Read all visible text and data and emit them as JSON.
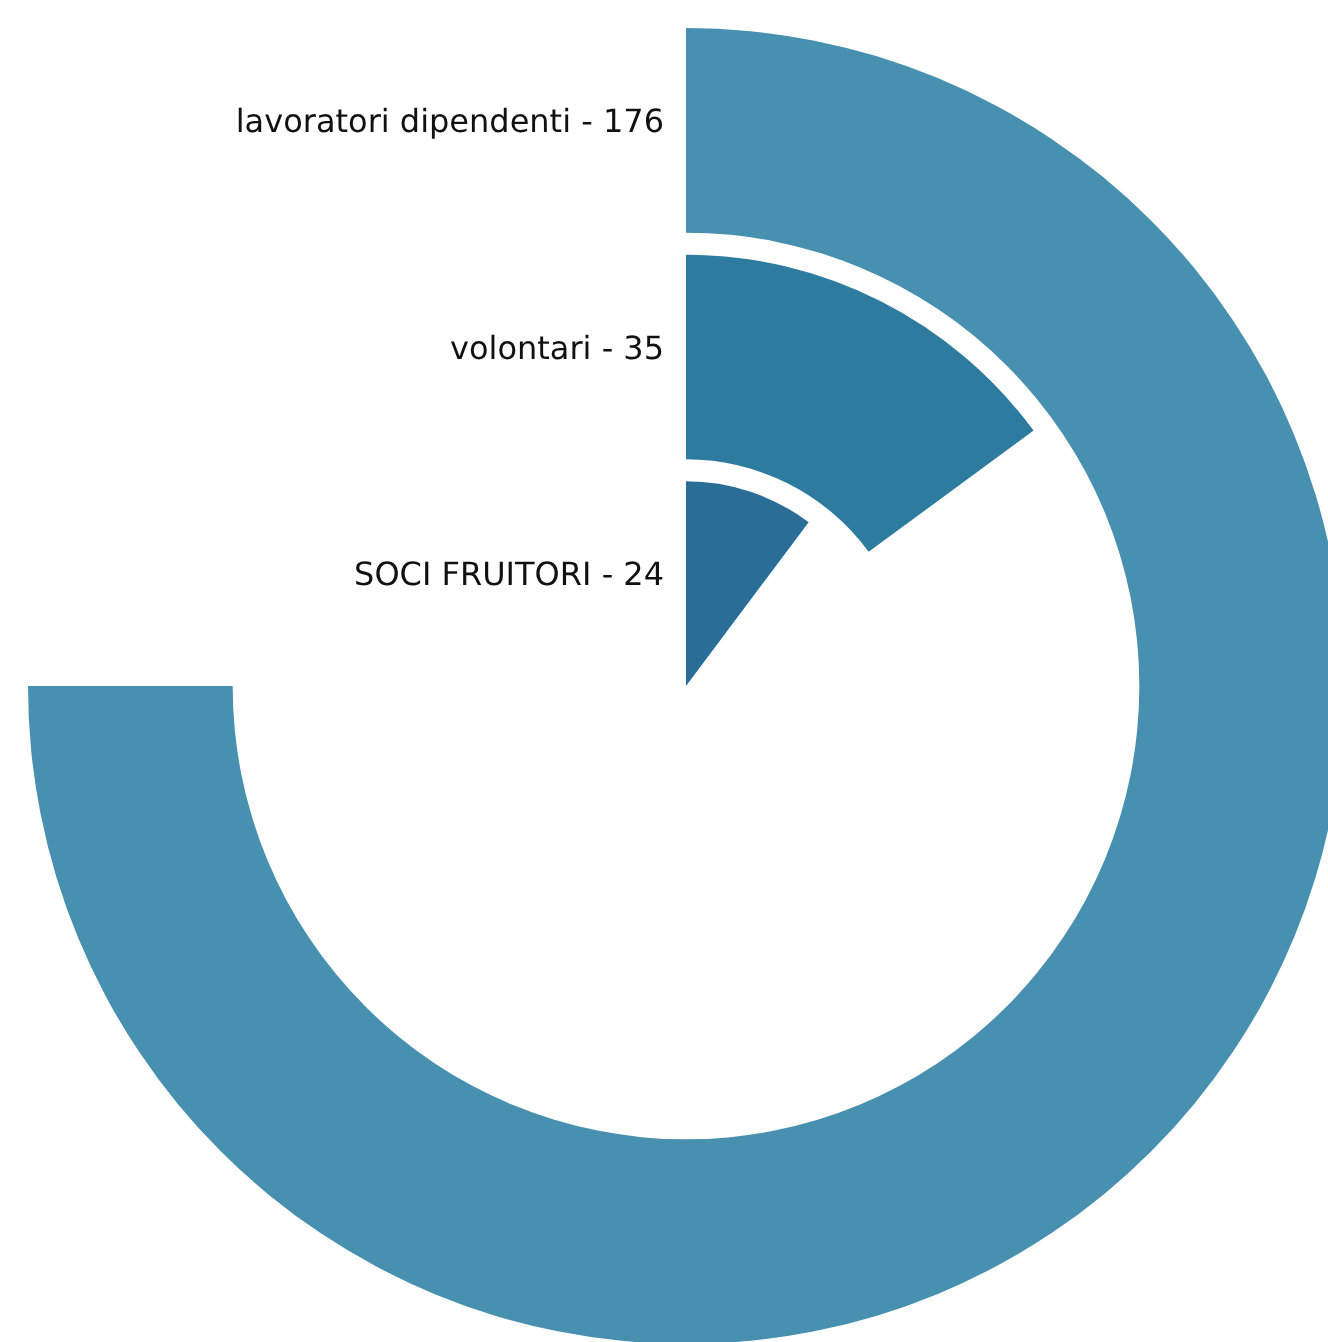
{
  "chart_data": {
    "type": "other",
    "categories": [
      "lavoratori dipendenti -",
      "volontari -",
      "SOCI FRUITORI -"
    ],
    "values": [
      176,
      35,
      24
    ],
    "colors": [
      "#4890b0",
      "#2e7ba0",
      "#2a6e98"
    ],
    "data_labels": true
  }
}
